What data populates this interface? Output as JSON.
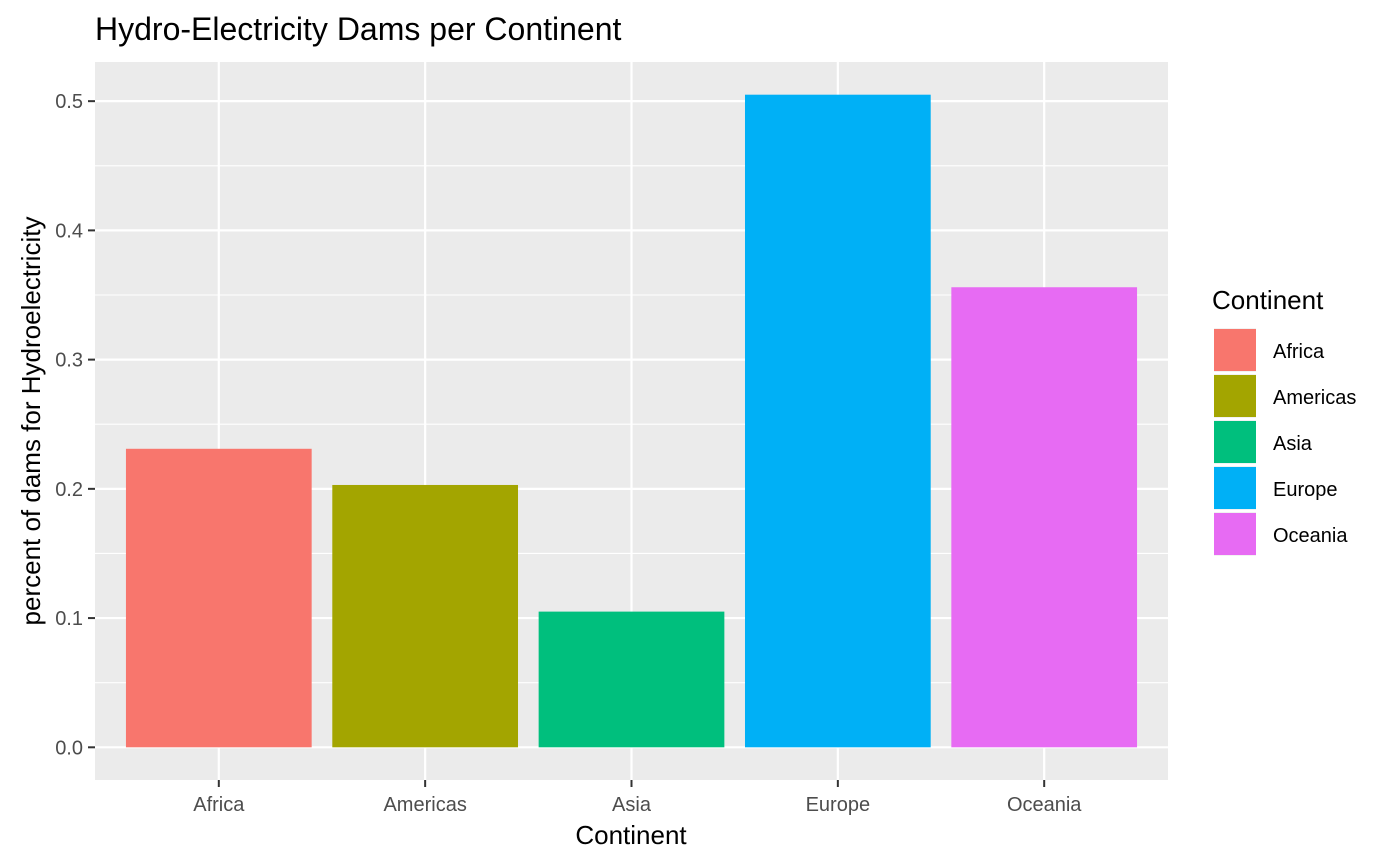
{
  "chart_data": {
    "type": "bar",
    "title": "Hydro-Electricity Dams per Continent",
    "xlabel": "Continent",
    "ylabel": "percent of dams for Hydroelectricity",
    "categories": [
      "Africa",
      "Americas",
      "Asia",
      "Europe",
      "Oceania"
    ],
    "values": [
      0.231,
      0.203,
      0.105,
      0.505,
      0.356
    ],
    "colors": [
      "#F8766D",
      "#A3A500",
      "#00BF7D",
      "#00B0F6",
      "#E76BF3"
    ],
    "ylim": [
      -0.0253,
      0.5303
    ],
    "yticks": [
      0.0,
      0.1,
      0.2,
      0.3,
      0.4,
      0.5
    ],
    "ytick_labels": [
      "0.0",
      "0.1",
      "0.2",
      "0.3",
      "0.4",
      "0.5"
    ],
    "grid": true,
    "panel_background": "#EBEBEB",
    "legend": {
      "title": "Continent",
      "placement": "right",
      "items": [
        "Africa",
        "Americas",
        "Asia",
        "Europe",
        "Oceania"
      ]
    }
  }
}
